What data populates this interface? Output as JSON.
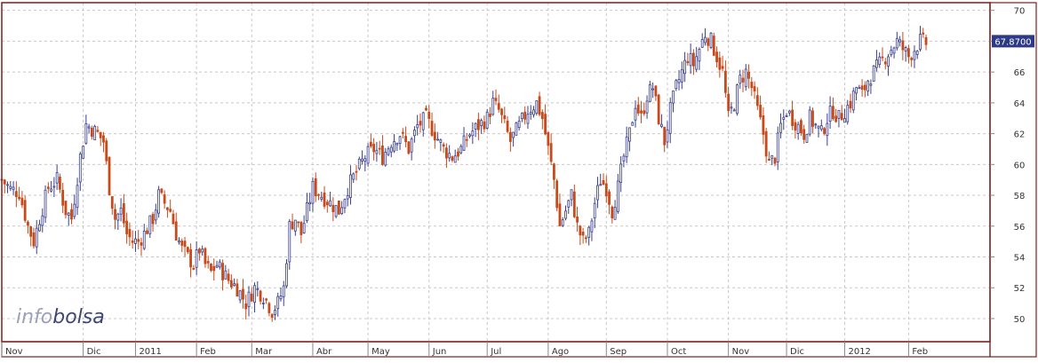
{
  "chart_data": {
    "type": "candlestick",
    "brand": "infobolsa",
    "last_price_label": "67.8700",
    "colors": {
      "up": "#3a3f8f",
      "down": "#c84a1a",
      "frame": "#7a1f1f",
      "grid": "#c8c8c8",
      "background": "#ffffff",
      "price_tag": "#2e3a87",
      "logo_light": "#9aa0b8",
      "logo_dark": "#3d4670"
    },
    "grid": true,
    "y_axis": {
      "position": "right",
      "min": 48.5,
      "max": 70.5,
      "ticks": [
        50,
        52,
        54,
        56,
        58,
        60,
        62,
        64,
        66,
        68,
        70
      ]
    },
    "x_axis": {
      "min_day": 0,
      "max_day": 340,
      "tick_labels": [
        {
          "label": "Nov",
          "day": 0
        },
        {
          "label": "Dic",
          "day": 28
        },
        {
          "label": "2011",
          "day": 46
        },
        {
          "label": "Feb",
          "day": 67
        },
        {
          "label": "Mar",
          "day": 86
        },
        {
          "label": "Abr",
          "day": 107
        },
        {
          "label": "May",
          "day": 126
        },
        {
          "label": "Jun",
          "day": 147
        },
        {
          "label": "Jul",
          "day": 167
        },
        {
          "label": "Ago",
          "day": 188
        },
        {
          "label": "Sep",
          "day": 208
        },
        {
          "label": "Oct",
          "day": 229
        },
        {
          "label": "Nov",
          "day": 250
        },
        {
          "label": "Dic",
          "day": 270
        },
        {
          "label": "2012",
          "day": 290
        },
        {
          "label": "Feb",
          "day": 312
        }
      ]
    },
    "close_series": [
      [
        0,
        59.0
      ],
      [
        3,
        58.4
      ],
      [
        6,
        58.2
      ],
      [
        9,
        56.0
      ],
      [
        11,
        55.0
      ],
      [
        13,
        56.5
      ],
      [
        16,
        58.5
      ],
      [
        19,
        59.0
      ],
      [
        22,
        57.0
      ],
      [
        24,
        56.5
      ],
      [
        27,
        60.5
      ],
      [
        29,
        62.6
      ],
      [
        31,
        62.3
      ],
      [
        33,
        62.0
      ],
      [
        35,
        61.5
      ],
      [
        37,
        58.5
      ],
      [
        39,
        56.5
      ],
      [
        41,
        57.0
      ],
      [
        43,
        55.5
      ],
      [
        45,
        55.0
      ],
      [
        47,
        55.0
      ],
      [
        49,
        55.5
      ],
      [
        52,
        56.5
      ],
      [
        54,
        58.0
      ],
      [
        56,
        57.5
      ],
      [
        58,
        57.0
      ],
      [
        60,
        55.5
      ],
      [
        62,
        54.5
      ],
      [
        64,
        54.0
      ],
      [
        66,
        53.5
      ],
      [
        68,
        54.5
      ],
      [
        70,
        53.5
      ],
      [
        72,
        53.0
      ],
      [
        74,
        53.5
      ],
      [
        76,
        53.0
      ],
      [
        78,
        52.5
      ],
      [
        81,
        52.0
      ],
      [
        84,
        51.0
      ],
      [
        87,
        52.0
      ],
      [
        90,
        51.5
      ],
      [
        93,
        50.5
      ],
      [
        95,
        51.0
      ],
      [
        97,
        52.0
      ],
      [
        99,
        56.0
      ],
      [
        101,
        56.5
      ],
      [
        103,
        55.5
      ],
      [
        105,
        57.0
      ],
      [
        107,
        58.5
      ],
      [
        110,
        58.0
      ],
      [
        113,
        57.5
      ],
      [
        116,
        57.0
      ],
      [
        119,
        58.5
      ],
      [
        122,
        59.5
      ],
      [
        125,
        60.5
      ],
      [
        128,
        61.0
      ],
      [
        131,
        60.5
      ],
      [
        134,
        61.5
      ],
      [
        137,
        62.0
      ],
      [
        140,
        61.0
      ],
      [
        143,
        62.5
      ],
      [
        146,
        63.0
      ],
      [
        149,
        62.0
      ],
      [
        152,
        61.0
      ],
      [
        155,
        60.5
      ],
      [
        158,
        61.0
      ],
      [
        161,
        62.0
      ],
      [
        164,
        62.5
      ],
      [
        167,
        63.0
      ],
      [
        169,
        64.0
      ],
      [
        171,
        63.5
      ],
      [
        173,
        62.5
      ],
      [
        175,
        61.5
      ],
      [
        178,
        62.5
      ],
      [
        181,
        63.5
      ],
      [
        184,
        64.0
      ],
      [
        186,
        63.0
      ],
      [
        188,
        61.0
      ],
      [
        190,
        59.0
      ],
      [
        192,
        56.0
      ],
      [
        194,
        57.0
      ],
      [
        196,
        58.0
      ],
      [
        198,
        56.0
      ],
      [
        200,
        55.0
      ],
      [
        202,
        55.5
      ],
      [
        204,
        57.5
      ],
      [
        206,
        59.0
      ],
      [
        208,
        58.5
      ],
      [
        210,
        57.0
      ],
      [
        212,
        58.5
      ],
      [
        214,
        60.5
      ],
      [
        216,
        62.0
      ],
      [
        218,
        64.0
      ],
      [
        220,
        63.0
      ],
      [
        222,
        64.5
      ],
      [
        224,
        65.0
      ],
      [
        226,
        63.0
      ],
      [
        228,
        61.5
      ],
      [
        230,
        63.5
      ],
      [
        232,
        65.0
      ],
      [
        234,
        66.0
      ],
      [
        236,
        67.0
      ],
      [
        238,
        66.5
      ],
      [
        240,
        67.5
      ],
      [
        242,
        68.5
      ],
      [
        244,
        68.0
      ],
      [
        246,
        67.0
      ],
      [
        248,
        66.0
      ],
      [
        250,
        63.0
      ],
      [
        252,
        64.0
      ],
      [
        254,
        65.5
      ],
      [
        256,
        66.0
      ],
      [
        258,
        65.0
      ],
      [
        260,
        63.5
      ],
      [
        262,
        62.0
      ],
      [
        264,
        60.0
      ],
      [
        266,
        60.5
      ],
      [
        268,
        62.5
      ],
      [
        270,
        63.5
      ],
      [
        272,
        63.0
      ],
      [
        274,
        62.5
      ],
      [
        276,
        62.0
      ],
      [
        278,
        63.0
      ],
      [
        280,
        62.5
      ],
      [
        282,
        62.0
      ],
      [
        284,
        63.0
      ],
      [
        286,
        63.5
      ],
      [
        288,
        63.0
      ],
      [
        290,
        63.5
      ],
      [
        292,
        64.0
      ],
      [
        294,
        65.0
      ],
      [
        296,
        64.5
      ],
      [
        298,
        65.5
      ],
      [
        300,
        66.0
      ],
      [
        302,
        66.5
      ],
      [
        304,
        67.0
      ],
      [
        306,
        67.5
      ],
      [
        308,
        68.0
      ],
      [
        310,
        67.5
      ],
      [
        312,
        67.0
      ],
      [
        314,
        67.5
      ],
      [
        316,
        68.0
      ],
      [
        318,
        67.87
      ]
    ]
  }
}
